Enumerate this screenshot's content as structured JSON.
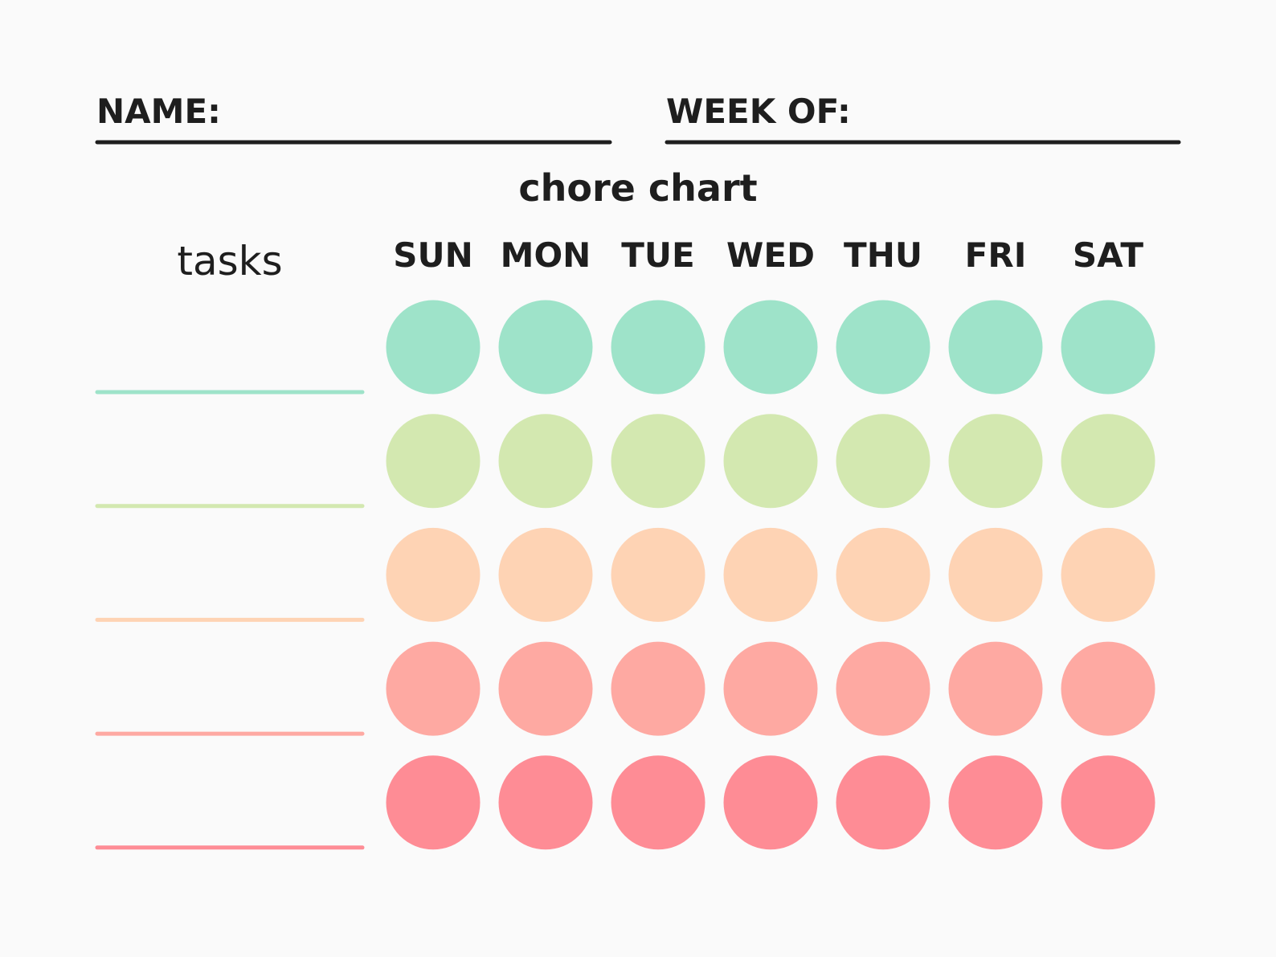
{
  "header": {
    "name_label": "NAME:",
    "week_label": "WEEK OF:"
  },
  "title": "chore chart",
  "tasks_label": "tasks",
  "days": [
    "SUN",
    "MON",
    "TUE",
    "WED",
    "THU",
    "FRI",
    "SAT"
  ]
}
